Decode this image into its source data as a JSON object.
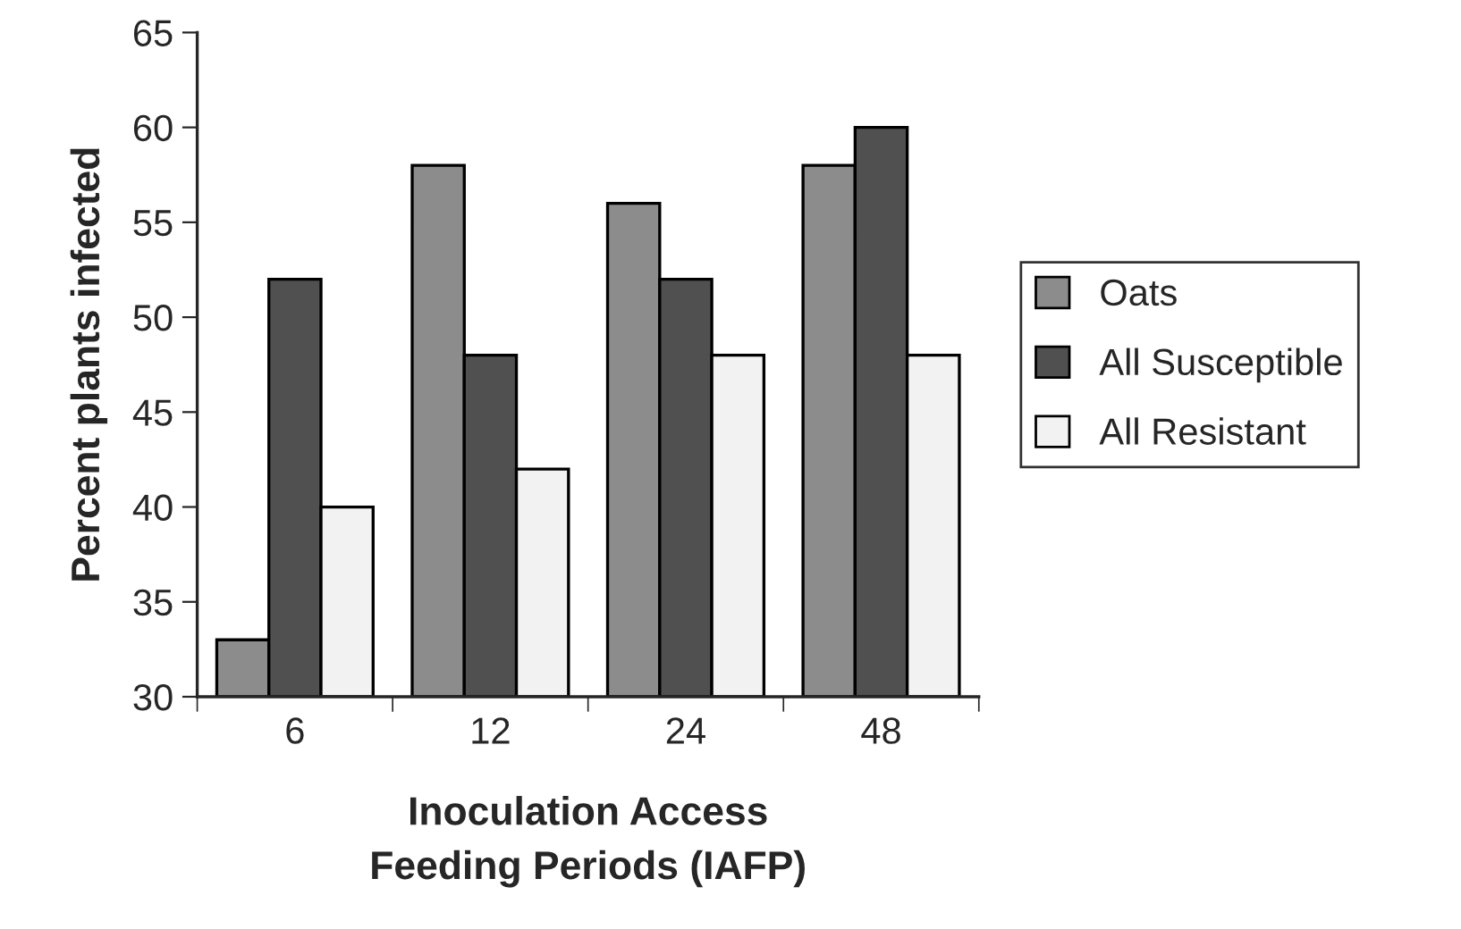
{
  "chart_data": {
    "type": "bar",
    "xlabel": "Inoculation Access\nFeeding Periods (IAFP)",
    "ylabel": "Percent plants infected",
    "categories": [
      "6",
      "12",
      "24",
      "48"
    ],
    "series": [
      {
        "name": "Oats",
        "color": "#8c8c8c",
        "values": [
          33,
          58,
          56,
          58
        ]
      },
      {
        "name": "All Susceptible",
        "color": "#505050",
        "values": [
          52,
          48,
          52,
          60
        ]
      },
      {
        "name": "All Resistant",
        "color": "#f2f2f2",
        "values": [
          40,
          42,
          48,
          48
        ]
      }
    ],
    "ylim": [
      30,
      65
    ],
    "yticks": [
      30,
      35,
      40,
      45,
      50,
      55,
      60,
      65
    ],
    "grid": false,
    "legend": "right"
  }
}
